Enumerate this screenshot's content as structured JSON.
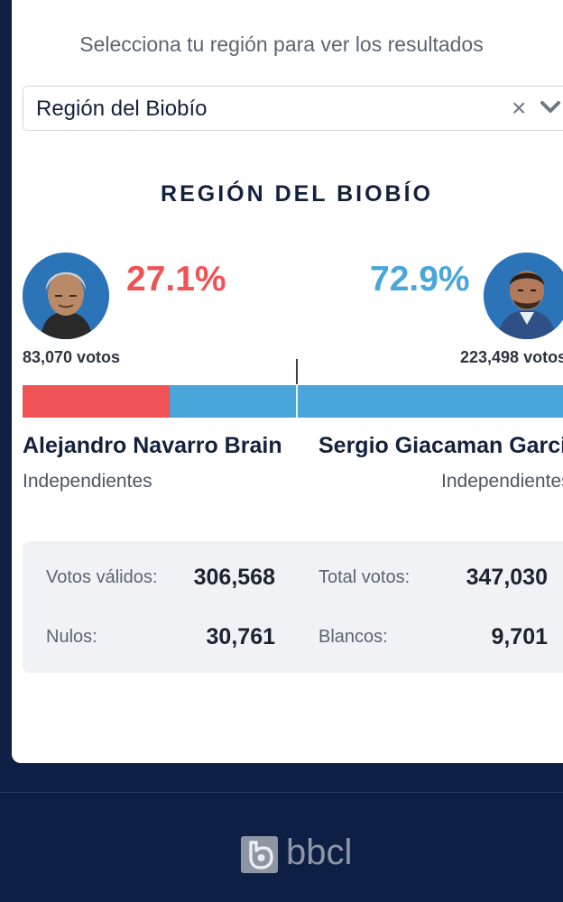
{
  "selector": {
    "prompt": "Selecciona tu región para ver los resultados",
    "selected_value": "Región del Biobío",
    "clear_icon": "×"
  },
  "region_title": "REGIÓN DEL BIOBÍO",
  "candidates": [
    {
      "name": "Alejandro Navarro Brain",
      "party": "Independientes",
      "percent": "27.1%",
      "votes": "83,070 votos",
      "color": "#f05356",
      "share": 0.271
    },
    {
      "name": "Sergio Giacaman Garcia",
      "party": "Independientes",
      "percent": "72.9%",
      "votes": "223,498 votos",
      "color": "#4aa5da",
      "share": 0.729
    }
  ],
  "stats": {
    "valid_label": "Votos válidos:",
    "valid_value": "306,568",
    "total_label": "Total votos:",
    "total_value": "347,030",
    "null_label": "Nulos:",
    "null_value": "30,761",
    "blank_label": "Blancos:",
    "blank_value": "9,701"
  },
  "footer": {
    "logo_text": "bbcl"
  },
  "colors": {
    "background": "#0e1f45",
    "card": "#ffffff",
    "left_candidate": "#f05356",
    "right_candidate": "#4aa5da"
  },
  "icons": [
    "clear-icon",
    "chevron-down-icon",
    "bbcl-logo-icon"
  ]
}
